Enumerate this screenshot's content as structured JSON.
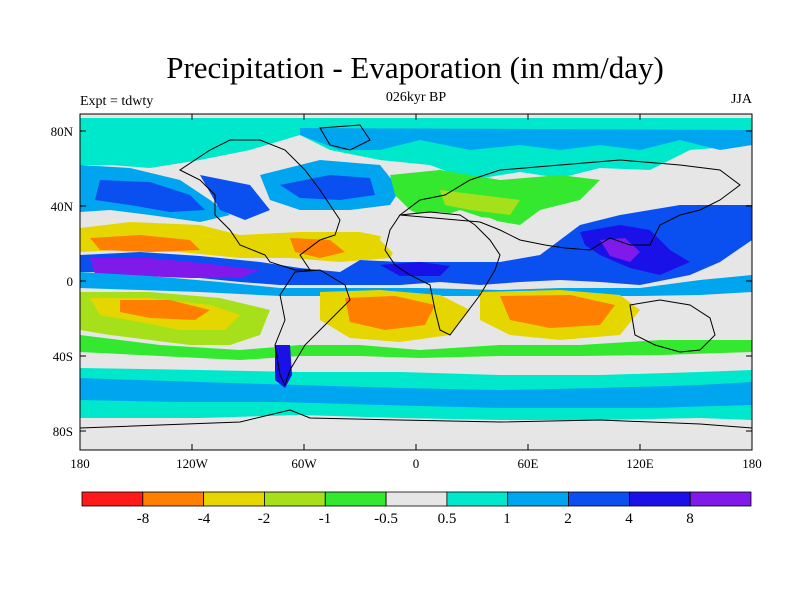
{
  "title": "Precipitation - Evaporation (in mm/day)",
  "subtitle": "026kyr BP",
  "left_string": "Expt = tdwty",
  "right_string": "JJA",
  "lat_ticks": [
    "80N",
    "40N",
    "0",
    "40S",
    "80S"
  ],
  "lon_ticks": [
    "180",
    "120W",
    "60W",
    "0",
    "60E",
    "120E",
    "180"
  ],
  "colorbar": {
    "colors": [
      "#ff1a1a",
      "#ff7f00",
      "#e6d600",
      "#a6e01a",
      "#33e82e",
      "#e6e6e6",
      "#00e8cc",
      "#00a5f0",
      "#0a50f0",
      "#1a10e8",
      "#7f1aea"
    ],
    "labels": [
      "-8",
      "-4",
      "-2",
      "-1",
      "-0.5",
      "0.5",
      "1",
      "2",
      "4",
      "8"
    ]
  }
}
